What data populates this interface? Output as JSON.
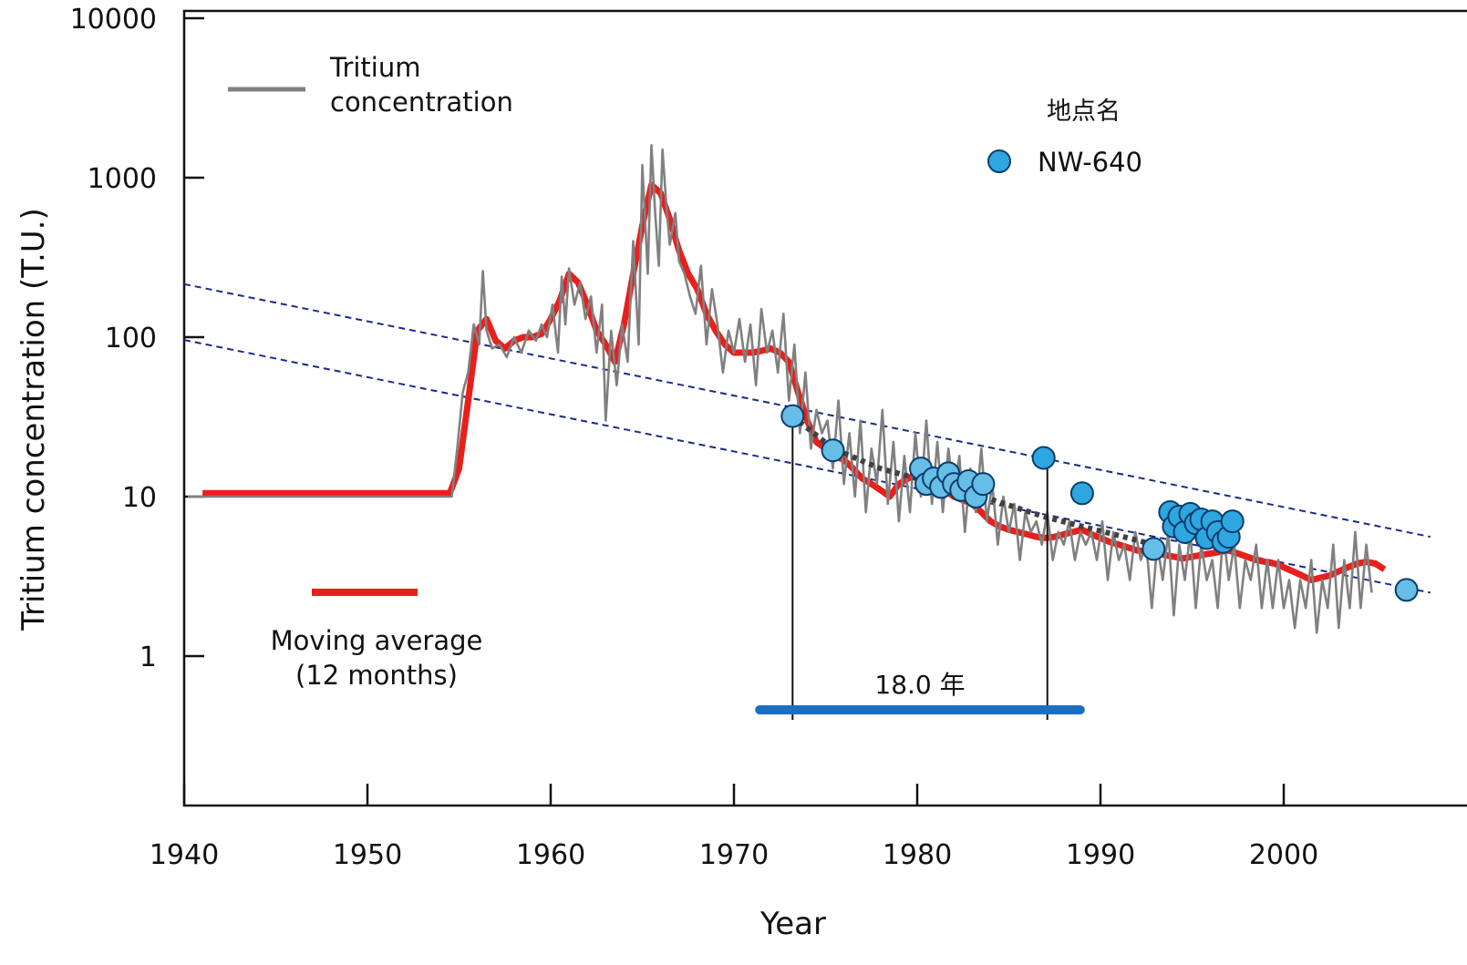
{
  "chart_data": {
    "type": "line",
    "xlabel": "Year",
    "ylabel": "Tritium concentration (T.U.)",
    "xlim": [
      1940,
      2008
    ],
    "ylim": [
      0.1,
      10000
    ],
    "y_scale": "log",
    "x_ticks": [
      {
        "value": 1940,
        "label": "1940"
      },
      {
        "value": 1950,
        "label": "1950"
      },
      {
        "value": 1960,
        "label": "1960"
      },
      {
        "value": 1970,
        "label": "1970"
      },
      {
        "value": 1980,
        "label": "1980"
      },
      {
        "value": 1990,
        "label": "1990"
      },
      {
        "value": 2000,
        "label": "2000"
      }
    ],
    "y_ticks": [
      {
        "value": 10000,
        "label": "10000"
      },
      {
        "value": 1000,
        "label": "1000"
      },
      {
        "value": 100,
        "label": "100"
      },
      {
        "value": 10,
        "label": "10"
      },
      {
        "value": 1,
        "label": "1"
      }
    ],
    "legend": [
      {
        "label": "Tritium\nconcentration",
        "color": "#808080"
      },
      {
        "label": "Moving average\n(12 months)",
        "color": "#e8201c"
      }
    ],
    "colors": {
      "tritium": "#808080",
      "moving_average": "#e8201c",
      "points": "#2ea6e0",
      "points_light": "#66bde6",
      "decay_line": "#1b2a8a",
      "trend": "#404040",
      "interval_bar": "#1a6fc0"
    },
    "series": [
      {
        "name": "Tritium concentration",
        "x": [
          1940.2,
          1954.6,
          1954.9,
          1955.2,
          1955.5,
          1955.8,
          1956.1,
          1956.3,
          1956.5,
          1956.8,
          1957.2,
          1957.6,
          1958.0,
          1958.4,
          1958.8,
          1959.2,
          1959.5,
          1959.8,
          1960.1,
          1960.4,
          1960.6,
          1960.8,
          1961.0,
          1961.3,
          1961.6,
          1961.9,
          1962.2,
          1962.5,
          1962.8,
          1963.0,
          1963.3,
          1963.6,
          1963.9,
          1964.2,
          1964.5,
          1964.8,
          1965.0,
          1965.3,
          1965.5,
          1965.7,
          1965.9,
          1966.1,
          1966.3,
          1966.5,
          1966.8,
          1967.0,
          1967.3,
          1967.6,
          1967.9,
          1968.2,
          1968.5,
          1968.8,
          1969.1,
          1969.4,
          1969.7,
          1970.0,
          1970.3,
          1970.6,
          1970.9,
          1971.2,
          1971.5,
          1971.8,
          1972.1,
          1972.4,
          1972.7,
          1973.0,
          1973.3,
          1973.6,
          1973.9,
          1974.2,
          1974.5,
          1974.8,
          1975.1,
          1975.4,
          1975.7,
          1976.0,
          1976.3,
          1976.6,
          1976.9,
          1977.2,
          1977.5,
          1977.8,
          1978.1,
          1978.4,
          1978.7,
          1979.0,
          1979.3,
          1979.6,
          1979.9,
          1980.2,
          1980.5,
          1980.8,
          1981.1,
          1981.4,
          1981.7,
          1982.0,
          1982.3,
          1982.6,
          1982.9,
          1983.2,
          1983.5,
          1983.8,
          1984.1,
          1984.4,
          1984.7,
          1985.0,
          1985.3,
          1985.6,
          1985.9,
          1986.2,
          1986.5,
          1986.8,
          1987.1,
          1987.4,
          1987.7,
          1988.0,
          1988.3,
          1988.6,
          1988.9,
          1989.2,
          1989.5,
          1989.8,
          1990.1,
          1990.4,
          1990.7,
          1991.0,
          1991.3,
          1991.6,
          1991.9,
          1992.2,
          1992.5,
          1992.8,
          1993.1,
          1993.4,
          1993.7,
          1994.0,
          1994.3,
          1994.6,
          1994.9,
          1995.2,
          1995.5,
          1995.8,
          1996.1,
          1996.4,
          1996.7,
          1997.0,
          1997.3,
          1997.6,
          1997.9,
          1998.2,
          1998.5,
          1998.8,
          1999.1,
          1999.4,
          1999.7,
          2000.0,
          2000.3,
          2000.6,
          2000.9,
          2001.2,
          2001.5,
          2001.8,
          2002.1,
          2002.4,
          2002.7,
          2003.0,
          2003.3,
          2003.6,
          2003.9,
          2004.2,
          2004.5,
          2004.8
        ],
        "y": [
          10,
          10,
          20,
          45,
          60,
          120,
          90,
          260,
          110,
          85,
          90,
          75,
          100,
          80,
          110,
          95,
          120,
          100,
          160,
          80,
          240,
          120,
          270,
          160,
          220,
          130,
          180,
          80,
          160,
          30,
          110,
          50,
          120,
          70,
          400,
          90,
          1200,
          250,
          1600,
          600,
          280,
          1500,
          700,
          380,
          600,
          300,
          250,
          180,
          140,
          280,
          90,
          200,
          120,
          60,
          110,
          80,
          130,
          70,
          120,
          50,
          150,
          80,
          110,
          60,
          140,
          40,
          90,
          25,
          60,
          20,
          35,
          25,
          30,
          15,
          40,
          12,
          25,
          10,
          30,
          8,
          20,
          12,
          35,
          9,
          22,
          7,
          18,
          8,
          25,
          10,
          30,
          9,
          22,
          8,
          20,
          10,
          18,
          6,
          15,
          8,
          20,
          7,
          12,
          5,
          10,
          6,
          9,
          4,
          8,
          6,
          7,
          5,
          8,
          4,
          6,
          5,
          7,
          4,
          6,
          5,
          6,
          4,
          7,
          3,
          6,
          4,
          5,
          3,
          6,
          4,
          5,
          2,
          5,
          3,
          6,
          1.8,
          5,
          3,
          6,
          2,
          5,
          3,
          4,
          2,
          6,
          3,
          5,
          2,
          4,
          3,
          5,
          2,
          4,
          2,
          4,
          2,
          3,
          1.5,
          3,
          2,
          4,
          1.4,
          3,
          2,
          5,
          1.5,
          4,
          2,
          6,
          2,
          5,
          2.5
        ]
      },
      {
        "name": "Moving average (12 months)",
        "x": [
          1941,
          1954.5,
          1955.0,
          1955.5,
          1956.0,
          1956.5,
          1957.0,
          1957.5,
          1958.0,
          1958.5,
          1959.0,
          1959.5,
          1960.0,
          1960.5,
          1961.0,
          1961.5,
          1962.0,
          1962.5,
          1963.0,
          1963.5,
          1964.0,
          1964.5,
          1965.0,
          1965.5,
          1966.0,
          1966.5,
          1967.0,
          1967.5,
          1968.0,
          1968.5,
          1969.0,
          1969.5,
          1970.0,
          1970.5,
          1971.0,
          1971.5,
          1972.0,
          1972.5,
          1973.0,
          1973.5,
          1974.0,
          1974.5,
          1975.0,
          1975.5,
          1976.0,
          1976.5,
          1977.0,
          1977.5,
          1978.0,
          1978.5,
          1979.0,
          1979.5,
          1980.0,
          1980.5,
          1981.0,
          1981.5,
          1982.0,
          1982.5,
          1983.0,
          1983.5,
          1984.0,
          1984.5,
          1985.0,
          1985.5,
          1986.0,
          1986.5,
          1987.0,
          1987.5,
          1988.0,
          1988.5,
          1989.0,
          1989.5,
          1990.0,
          1990.5,
          1991.0,
          1991.5,
          1992.0,
          1992.5,
          1993.0,
          1993.5,
          1994.0,
          1994.5,
          1995.0,
          1995.5,
          1996.0,
          1996.5,
          1997.0,
          1997.5,
          1998.0,
          1998.5,
          1999.0,
          1999.5,
          2000.0,
          2000.5,
          2001.0,
          2001.5,
          2002.0,
          2002.5,
          2003.0,
          2003.5,
          2004.0,
          2004.5,
          2005.0,
          2005.5
        ],
        "y": [
          10.5,
          10.5,
          15,
          40,
          110,
          130,
          95,
          85,
          95,
          100,
          100,
          105,
          130,
          170,
          250,
          220,
          160,
          110,
          90,
          70,
          120,
          250,
          500,
          900,
          800,
          550,
          350,
          250,
          200,
          140,
          110,
          90,
          80,
          80,
          80,
          82,
          85,
          80,
          70,
          45,
          30,
          22,
          20,
          18,
          17,
          15,
          13,
          12,
          11,
          10,
          12,
          13,
          14,
          13,
          12,
          11,
          10,
          9.5,
          9,
          8,
          7,
          6.5,
          6.2,
          6,
          5.8,
          5.6,
          5.5,
          5.6,
          5.8,
          6,
          6.2,
          5.8,
          5.5,
          5.2,
          5,
          4.8,
          4.6,
          4.5,
          4.4,
          4.3,
          4.2,
          4.1,
          4.2,
          4.3,
          4.4,
          4.5,
          4.6,
          4.4,
          4.2,
          4,
          3.9,
          3.8,
          3.6,
          3.4,
          3.2,
          3,
          3.1,
          3.2,
          3.4,
          3.6,
          3.8,
          3.9,
          3.8,
          3.5
        ]
      },
      {
        "name": "NW-640",
        "x": [
          1973.2,
          1975.4,
          1980.2,
          1980.5,
          1980.9,
          1981.3,
          1981.7,
          1982.0,
          1982.4,
          1982.8,
          1983.2,
          1983.6,
          1986.9,
          1989.0,
          1992.9,
          1993.8,
          1994.0,
          1994.3,
          1994.6,
          1994.9,
          1995.2,
          1995.5,
          1995.8,
          1996.1,
          1996.4,
          1996.7,
          1997.0,
          1997.2,
          2006.7
        ],
        "y": [
          32,
          19.5,
          15,
          12,
          13,
          11.5,
          14,
          12,
          11,
          12.5,
          10,
          12,
          17.5,
          10.5,
          4.7,
          8,
          6.5,
          7.5,
          6,
          7.8,
          6.8,
          7.2,
          5.5,
          7,
          6,
          5.2,
          5.6,
          7,
          2.6
        ]
      }
    ],
    "decay_lines": [
      {
        "x": [
          1940,
          2008
        ],
        "y": [
          215,
          5.6
        ]
      },
      {
        "x": [
          1940,
          2008
        ],
        "y": [
          96,
          2.5
        ]
      }
    ],
    "trend_line": {
      "x": [
        1973.2,
        1975.4,
        1978,
        1980.5,
        1983,
        1986.9,
        1989,
        1991,
        1992.9
      ],
      "y": [
        32,
        20,
        15,
        12.5,
        10.5,
        7.5,
        6.5,
        5.7,
        5.0
      ]
    },
    "interval": {
      "x_start": 1973.2,
      "x_end": 1987.1,
      "bar_x": [
        1971.4,
        1988.9
      ],
      "bar_y": 0.46,
      "label": "18.0 年"
    },
    "point_legend_title": "地点名",
    "point_legend_label": "NW-640"
  }
}
